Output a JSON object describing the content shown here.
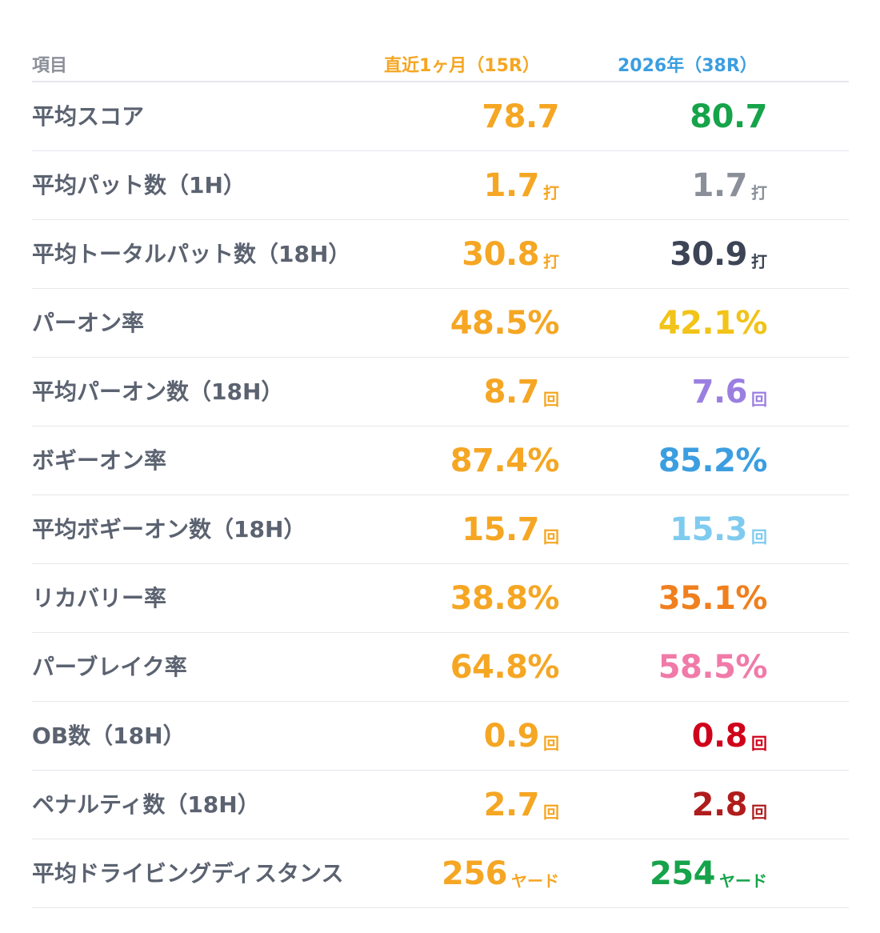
{
  "header": {
    "item": "項目",
    "recent": "直近1ヶ月（15R）",
    "year": "2026年（38R）",
    "recent_color": "#f5a623",
    "year_color": "#3b9ee0"
  },
  "rows": [
    {
      "label": "平均スコア",
      "recent": {
        "value": "78.7",
        "unit": "",
        "color": "#f5a623"
      },
      "year": {
        "value": "80.7",
        "unit": "",
        "color": "#16a34a"
      }
    },
    {
      "label": "平均パット数（1H）",
      "recent": {
        "value": "1.7",
        "unit": "打",
        "color": "#f5a623"
      },
      "year": {
        "value": "1.7",
        "unit": "打",
        "color": "#8a8f99"
      }
    },
    {
      "label": "平均トータルパット数（18H）",
      "recent": {
        "value": "30.8",
        "unit": "打",
        "color": "#f5a623"
      },
      "year": {
        "value": "30.9",
        "unit": "打",
        "color": "#3c4456"
      }
    },
    {
      "label": "パーオン率",
      "recent": {
        "value": "48.5%",
        "unit": "",
        "color": "#f5a623"
      },
      "year": {
        "value": "42.1%",
        "unit": "",
        "color": "#f2c318"
      }
    },
    {
      "label": "平均パーオン数（18H）",
      "recent": {
        "value": "8.7",
        "unit": "回",
        "color": "#f5a623"
      },
      "year": {
        "value": "7.6",
        "unit": "回",
        "color": "#9b7fe0"
      }
    },
    {
      "label": "ボギーオン率",
      "recent": {
        "value": "87.4%",
        "unit": "",
        "color": "#f5a623"
      },
      "year": {
        "value": "85.2%",
        "unit": "",
        "color": "#3b9ee0"
      }
    },
    {
      "label": "平均ボギーオン数（18H）",
      "recent": {
        "value": "15.7",
        "unit": "回",
        "color": "#f5a623"
      },
      "year": {
        "value": "15.3",
        "unit": "回",
        "color": "#7fcbef"
      }
    },
    {
      "label": "リカバリー率",
      "recent": {
        "value": "38.8%",
        "unit": "",
        "color": "#f5a623"
      },
      "year": {
        "value": "35.1%",
        "unit": "",
        "color": "#f07f1e"
      }
    },
    {
      "label": "パーブレイク率",
      "recent": {
        "value": "64.8%",
        "unit": "",
        "color": "#f5a623"
      },
      "year": {
        "value": "58.5%",
        "unit": "",
        "color": "#f07aa8"
      }
    },
    {
      "label": "OB数（18H）",
      "recent": {
        "value": "0.9",
        "unit": "回",
        "color": "#f5a623"
      },
      "year": {
        "value": "0.8",
        "unit": "回",
        "color": "#d0021b"
      }
    },
    {
      "label": "ペナルティ数（18H）",
      "recent": {
        "value": "2.7",
        "unit": "回",
        "color": "#f5a623"
      },
      "year": {
        "value": "2.8",
        "unit": "回",
        "color": "#b01c1c"
      }
    },
    {
      "label": "平均ドライビングディスタンス",
      "recent": {
        "value": "256",
        "unit": "ヤード",
        "color": "#f5a623"
      },
      "year": {
        "value": "254",
        "unit": "ヤード",
        "color": "#16a34a"
      }
    }
  ]
}
